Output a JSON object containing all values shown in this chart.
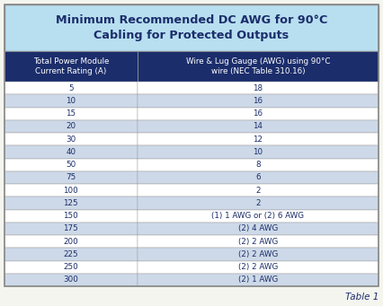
{
  "title_line1": "Minimum Recommended DC AWG for 90°C",
  "title_line2": "Cabling for Protected Outputs",
  "title_bg": "#b8dff0",
  "header_bg": "#1b2d6b",
  "header_col1": "Total Power Module\nCurrent Rating (A)",
  "header_col2": "Wire & Lug Gauge (AWG) using 90°C\nwire (NEC Table 310.16)",
  "header_text_color": "#ffffff",
  "rows": [
    [
      "5",
      "18"
    ],
    [
      "10",
      "16"
    ],
    [
      "15",
      "16"
    ],
    [
      "20",
      "14"
    ],
    [
      "30",
      "12"
    ],
    [
      "40",
      "10"
    ],
    [
      "50",
      "8"
    ],
    [
      "75",
      "6"
    ],
    [
      "100",
      "2"
    ],
    [
      "125",
      "2"
    ],
    [
      "150",
      "(1) 1 AWG or (2) 6 AWG"
    ],
    [
      "175",
      "(2) 4 AWG"
    ],
    [
      "200",
      "(2) 2 AWG"
    ],
    [
      "225",
      "(2) 2 AWG"
    ],
    [
      "250",
      "(2) 2 AWG"
    ],
    [
      "300",
      "(2) 1 AWG"
    ]
  ],
  "row_colors": [
    "#ffffff",
    "#cdd9e8",
    "#ffffff",
    "#cdd9e8",
    "#ffffff",
    "#cdd9e8",
    "#ffffff",
    "#cdd9e8",
    "#ffffff",
    "#cdd9e8",
    "#ffffff",
    "#cdd9e8",
    "#ffffff",
    "#cdd9e8",
    "#ffffff",
    "#cdd9e8"
  ],
  "text_color": "#1b2d6b",
  "border_color": "#999999",
  "outer_border": "#888888",
  "table_label": "Table 1",
  "col_split": 0.355,
  "fig_bg": "#f5f5f0",
  "fig_w": 4.26,
  "fig_h": 3.41,
  "dpi": 100
}
